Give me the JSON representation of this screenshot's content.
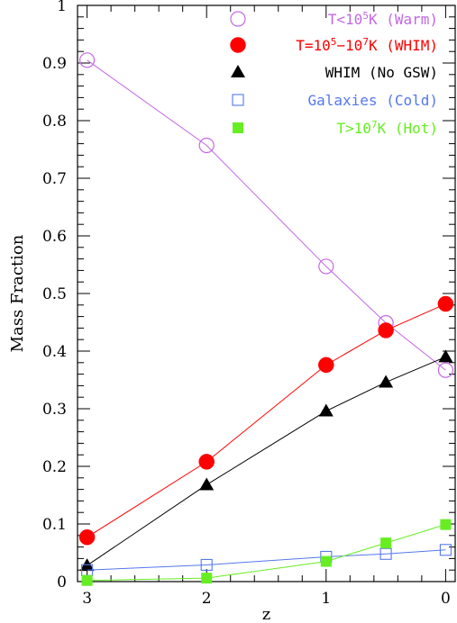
{
  "chart_data": {
    "type": "line",
    "xlabel": "z",
    "ylabel": "Mass Fraction",
    "x_reversed": true,
    "xlim": [
      3.08,
      -0.08
    ],
    "ylim": [
      0,
      1
    ],
    "xticks": [
      3,
      2,
      1,
      0
    ],
    "xtick_labels": [
      "3",
      "2",
      "1",
      "0"
    ],
    "yticks": [
      0,
      0.1,
      0.2,
      0.3,
      0.4,
      0.5,
      0.6,
      0.7,
      0.8,
      0.9,
      1
    ],
    "ytick_labels": [
      "0",
      "0.1",
      "0.2",
      "0.3",
      "0.4",
      "0.5",
      "0.6",
      "0.7",
      "0.8",
      "0.9",
      "1"
    ],
    "legend_position": "top-right",
    "series": [
      {
        "key": "warm",
        "name_parts": [
          "T<10",
          "5",
          "K (Warm)"
        ],
        "color": "#c467e6",
        "marker": "open-circle",
        "x": [
          3,
          2,
          1,
          0.5,
          0
        ],
        "y": [
          0.905,
          0.757,
          0.547,
          0.449,
          0.367
        ]
      },
      {
        "key": "whim",
        "name_parts": [
          "T=10",
          "5",
          "−10",
          "7",
          "K (WHIM)"
        ],
        "color": "#ff0000",
        "marker": "filled-circle",
        "x": [
          3,
          2,
          1,
          0.5,
          0
        ],
        "y": [
          0.077,
          0.208,
          0.376,
          0.436,
          0.482
        ]
      },
      {
        "key": "whim_nogsw",
        "name_parts": [
          "WHIM (No GSW)"
        ],
        "color": "#000000",
        "marker": "filled-triangle",
        "x": [
          3,
          2,
          1,
          0.5,
          0
        ],
        "y": [
          0.028,
          0.168,
          0.296,
          0.346,
          0.39
        ]
      },
      {
        "key": "galaxies",
        "name_parts": [
          "Galaxies (Cold)"
        ],
        "color": "#5577ee",
        "marker": "open-square",
        "x": [
          3,
          2,
          1,
          0.5,
          0
        ],
        "y": [
          0.02,
          0.029,
          0.043,
          0.048,
          0.055
        ]
      },
      {
        "key": "hot",
        "name_parts": [
          "T>10",
          "7",
          "K (Hot)"
        ],
        "color": "#66ee22",
        "marker": "filled-square",
        "x": [
          3,
          2,
          1,
          0.5,
          0
        ],
        "y": [
          0.002,
          0.006,
          0.035,
          0.067,
          0.099
        ]
      }
    ]
  }
}
